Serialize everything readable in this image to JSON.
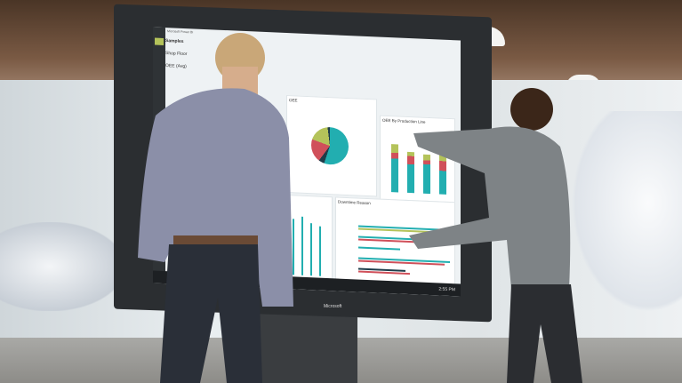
{
  "screen": {
    "app_title": "Microsoft Power BI",
    "nav_title": "Samples",
    "nav_item": "Shop Floor",
    "tile_oee_avg": "OEE (Avg)",
    "tile_oee": "OEE",
    "tile_oee_line": "OEE By Production Line",
    "tile_downtime": "Downtime Reason",
    "clock": "2:55 PM"
  },
  "device_brand": "Microsoft",
  "colors": {
    "teal": "#22aeb0",
    "red": "#d0505a",
    "olive": "#b4c35a",
    "navy": "#1f3d4a"
  }
}
